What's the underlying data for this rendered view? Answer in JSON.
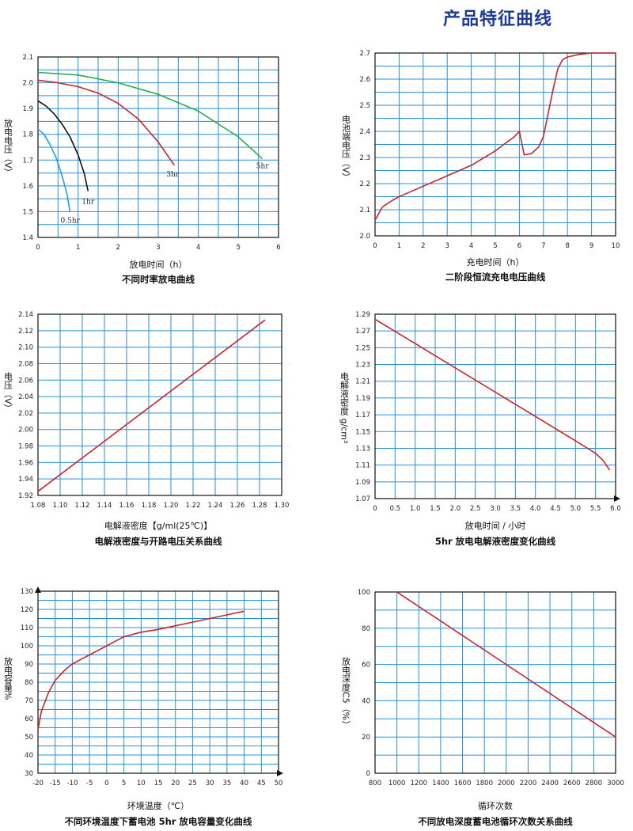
{
  "page_title": "产品特征曲线",
  "colors": {
    "grid": "#2b8fd6",
    "axis": "#111111",
    "red": "#c1272d",
    "green": "#2ea84f",
    "black": "#111111",
    "cyan": "#1aa3d9",
    "title": "#1f3a93"
  },
  "chart_data": [
    {
      "type": "line",
      "title": "不同时率放电曲线",
      "xlabel": "放电时间（h）",
      "ylabel": "放电电压（V）",
      "xlim": [
        0,
        6
      ],
      "ylim": [
        1.4,
        2.1
      ],
      "xticks": [
        "0",
        "1",
        "2",
        "3",
        "4",
        "5",
        "6"
      ],
      "yticks": [
        "1.4",
        "1.5",
        "1.6",
        "1.7",
        "1.8",
        "1.9",
        "2.0",
        "2.1"
      ],
      "xstep": 1,
      "ystep": 0.1,
      "xgrid": 12,
      "ygrid": 14,
      "grid": true,
      "series": [
        {
          "name": "5hr",
          "color": "green",
          "x": [
            0,
            1,
            2,
            3,
            4,
            5,
            5.6
          ],
          "y": [
            2.04,
            2.03,
            2.0,
            1.955,
            1.89,
            1.79,
            1.705
          ]
        },
        {
          "name": "3hr",
          "color": "red",
          "x": [
            0,
            0.5,
            1,
            1.5,
            2,
            2.5,
            3,
            3.4
          ],
          "y": [
            2.01,
            2.0,
            1.985,
            1.96,
            1.92,
            1.86,
            1.77,
            1.68
          ]
        },
        {
          "name": "1hr",
          "color": "black",
          "x": [
            0,
            0.2,
            0.4,
            0.6,
            0.8,
            1.0,
            1.15,
            1.25
          ],
          "y": [
            1.93,
            1.91,
            1.88,
            1.84,
            1.79,
            1.72,
            1.65,
            1.58
          ]
        },
        {
          "name": "0.5hr",
          "color": "cyan",
          "x": [
            0,
            0.15,
            0.3,
            0.45,
            0.6,
            0.72,
            0.8
          ],
          "y": [
            1.82,
            1.8,
            1.76,
            1.71,
            1.64,
            1.57,
            1.5
          ]
        }
      ],
      "annotations": [
        "5hr",
        "3hr",
        "1hr",
        "0.5hr"
      ]
    },
    {
      "type": "line",
      "title": "二阶段恒流充电电压曲线",
      "xlabel": "充电时间（h）",
      "ylabel": "电池端电压（V）",
      "xlim": [
        0,
        10
      ],
      "ylim": [
        2.0,
        2.7
      ],
      "xticks": [
        "0",
        "1",
        "2",
        "3",
        "4",
        "5",
        "6",
        "7",
        "8",
        "9",
        "10"
      ],
      "yticks": [
        "2.0",
        "2.1",
        "2.2",
        "2.3",
        "2.4",
        "2.5",
        "2.6",
        "2.7"
      ],
      "xstep": 1,
      "ystep": 0.1,
      "xgrid": 10,
      "ygrid": 14,
      "grid": true,
      "series": [
        {
          "name": "",
          "color": "red",
          "x": [
            0,
            0.3,
            0.7,
            1,
            2,
            3,
            4,
            5,
            5.5,
            5.8,
            6.0,
            6.2,
            6.5,
            6.8,
            7.0,
            7.2,
            7.4,
            7.6,
            7.8,
            8.0,
            8.5,
            9,
            9.5,
            10
          ],
          "y": [
            2.06,
            2.11,
            2.135,
            2.15,
            2.19,
            2.23,
            2.27,
            2.325,
            2.36,
            2.38,
            2.4,
            2.31,
            2.315,
            2.34,
            2.38,
            2.47,
            2.56,
            2.64,
            2.675,
            2.685,
            2.695,
            2.7,
            2.7,
            2.7
          ]
        }
      ]
    },
    {
      "type": "line",
      "title": "电解液密度与开路电压关系曲线",
      "xlabel": "电解液密度【g/ml(25℃)】",
      "ylabel": "电压（V）",
      "xlim": [
        1.08,
        1.3
      ],
      "ylim": [
        1.92,
        2.14
      ],
      "xticks": [
        "1.08",
        "1.10",
        "1.12",
        "1.14",
        "1.16",
        "1.18",
        "1.20",
        "1.22",
        "1.24",
        "1.26",
        "1.28",
        "1.30"
      ],
      "yticks": [
        "1.92",
        "1.94",
        "1.96",
        "1.98",
        "2.00",
        "2.02",
        "2.04",
        "2.06",
        "2.08",
        "2.10",
        "2.12",
        "2.14"
      ],
      "xstep": 0.02,
      "ystep": 0.02,
      "xgrid": 11,
      "ygrid": 11,
      "grid": true,
      "series": [
        {
          "name": "",
          "color": "red",
          "x": [
            1.08,
            1.285
          ],
          "y": [
            1.925,
            2.133
          ]
        }
      ]
    },
    {
      "type": "line",
      "title": "5hr 放电电解液密度变化曲线",
      "xlabel": "放电时间 / 小时",
      "ylabel": "电解液密度 g/cm³",
      "xlim": [
        0,
        6.0
      ],
      "ylim": [
        1.07,
        1.29
      ],
      "xticks": [
        "0",
        "0.5",
        "1.0",
        "1.5",
        "2.0",
        "2.5",
        "3.0",
        "3.5",
        "4.0",
        "4.5",
        "5.0",
        "5.5",
        "6.0"
      ],
      "yticks": [
        "1.07",
        "1.09",
        "1.11",
        "1.13",
        "1.15",
        "1.17",
        "1.19",
        "1.21",
        "1.23",
        "1.25",
        "1.27",
        "1.29"
      ],
      "xstep": 0.5,
      "ystep": 0.02,
      "xgrid": 12,
      "ygrid": 11,
      "grid": true,
      "series": [
        {
          "name": "",
          "color": "red",
          "x": [
            0,
            1,
            2,
            3,
            4,
            5,
            5.5,
            5.7,
            5.85
          ],
          "y": [
            1.284,
            1.255,
            1.226,
            1.197,
            1.168,
            1.139,
            1.124,
            1.115,
            1.104
          ]
        }
      ]
    },
    {
      "type": "line",
      "title": "不同环境温度下蓄电池 5hr 放电容量变化曲线",
      "xlabel": "环境温度（℃）",
      "ylabel": "放电容量%",
      "xlim": [
        -20,
        50
      ],
      "ylim": [
        30,
        130
      ],
      "xticks": [
        "-20",
        "-15",
        "-10",
        "-5",
        "0",
        "5",
        "10",
        "15",
        "20",
        "25",
        "30",
        "35",
        "40",
        "45",
        "50"
      ],
      "yticks": [
        "30",
        "40",
        "50",
        "60",
        "70",
        "80",
        "90",
        "100",
        "110",
        "120",
        "130"
      ],
      "xstep": 5,
      "ystep": 10,
      "xgrid": 14,
      "ygrid": 20,
      "grid": true,
      "series": [
        {
          "name": "",
          "color": "red",
          "x": [
            -20,
            -19,
            -17,
            -15,
            -12,
            -10,
            -7,
            -5,
            -2,
            0,
            3,
            5,
            10,
            15,
            20,
            25,
            30,
            35,
            40
          ],
          "y": [
            54,
            64,
            74,
            81,
            87,
            90,
            93,
            95,
            98,
            100,
            103,
            105,
            107.5,
            109,
            111,
            113,
            115,
            117,
            119
          ]
        }
      ]
    },
    {
      "type": "line",
      "title": "不同放电深度蓄电池循环次数关系曲线",
      "xlabel": "循环次数",
      "ylabel": "放电深度C5（%）",
      "xlim": [
        800,
        3000
      ],
      "ylim": [
        0,
        100
      ],
      "xticks": [
        "800",
        "1000",
        "1200",
        "1400",
        "1600",
        "1800",
        "2000",
        "2200",
        "2400",
        "2600",
        "2800",
        "3000"
      ],
      "yticks": [
        "0",
        "20",
        "40",
        "60",
        "80",
        "100"
      ],
      "xstep": 200,
      "ystep": 20,
      "xgrid": 11,
      "ygrid": 10,
      "grid": true,
      "series": [
        {
          "name": "",
          "color": "red",
          "x": [
            1000,
            3000
          ],
          "y": [
            100,
            20
          ]
        }
      ]
    }
  ]
}
